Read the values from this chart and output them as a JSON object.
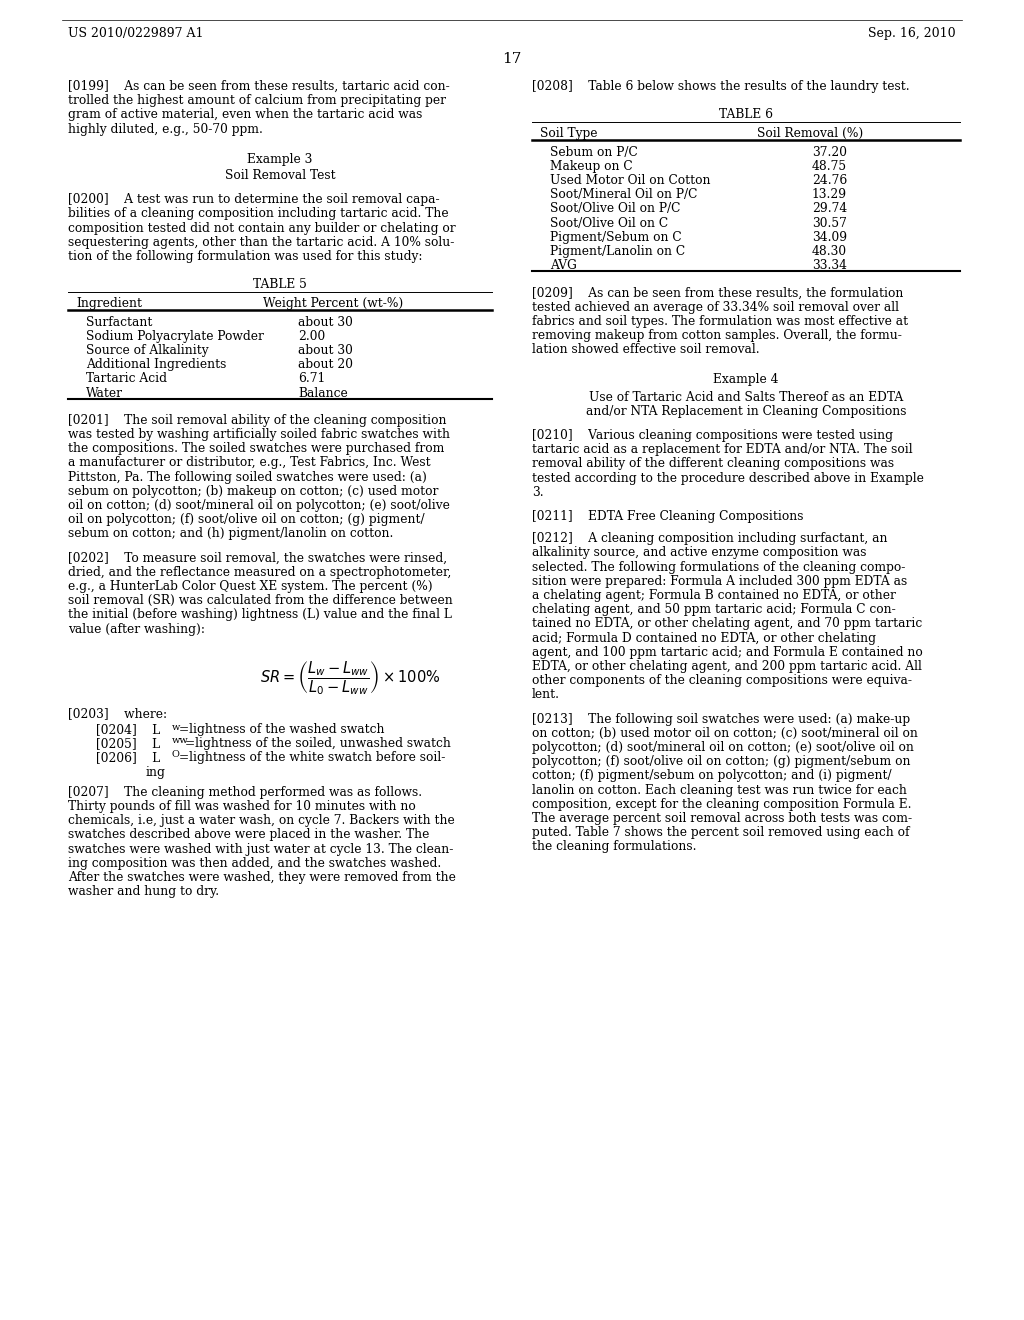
{
  "page_header_left": "US 2010/0229897 A1",
  "page_header_right": "Sep. 16, 2010",
  "page_number": "17",
  "background_color": "#ffffff",
  "text_color": "#000000",
  "left_col": {
    "para199_lines": [
      "[0199]    As can be seen from these results, tartaric acid con-",
      "trolled the highest amount of calcium from precipitating per",
      "gram of active material, even when the tartaric acid was",
      "highly diluted, e.g., 50-70 ppm."
    ],
    "example3_title": "Example 3",
    "example3_sub": "Soil Removal Test",
    "para200_lines": [
      "[0200]    A test was run to determine the soil removal capa-",
      "bilities of a cleaning composition including tartaric acid. The",
      "composition tested did not contain any builder or chelating or",
      "sequestering agents, other than the tartaric acid. A 10% solu-",
      "tion of the following formulation was used for this study:"
    ],
    "table5_title": "TABLE 5",
    "table5_col1": "Ingredient",
    "table5_col2": "Weight Percent (wt-%)",
    "table5_rows": [
      [
        "Surfactant",
        "about 30"
      ],
      [
        "Sodium Polyacrylate Powder",
        "2.00"
      ],
      [
        "Source of Alkalinity",
        "about 30"
      ],
      [
        "Additional Ingredients",
        "about 20"
      ],
      [
        "Tartaric Acid",
        "6.71"
      ],
      [
        "Water",
        "Balance"
      ]
    ],
    "para201_lines": [
      "[0201]    The soil removal ability of the cleaning composition",
      "was tested by washing artificially soiled fabric swatches with",
      "the compositions. The soiled swatches were purchased from",
      "a manufacturer or distributor, e.g., Test Fabrics, Inc. West",
      "Pittston, Pa. The following soiled swatches were used: (a)",
      "sebum on polycotton; (b) makeup on cotton; (c) used motor",
      "oil on cotton; (d) soot/mineral oil on polycotton; (e) soot/olive",
      "oil on polycotton; (f) soot/olive oil on cotton; (g) pigment/",
      "sebum on cotton; and (h) pigment/lanolin on cotton."
    ],
    "para202_lines": [
      "[0202]    To measure soil removal, the swatches were rinsed,",
      "dried, and the reflectance measured on a spectrophotometer,",
      "e.g., a HunterLab Color Quest XE system. The percent (%)",
      "soil removal (SR) was calculated from the difference between",
      "the initial (before washing) lightness (L) value and the final L",
      "value (after washing):"
    ],
    "para203": "[0203]    where:",
    "para204": "[0204]    Lₑ=lightness of the washed swatch",
    "para204_sub": "w",
    "para205": "[0205]    Lₑₑ=lightness of the soiled, unwashed swatch",
    "para206_lines": [
      "[0206]    Lₒ=lightness of the white swatch before soil-",
      "              ing"
    ],
    "para207_lines": [
      "[0207]    The cleaning method performed was as follows.",
      "Thirty pounds of fill was washed for 10 minutes with no",
      "chemicals, i.e, just a water wash, on cycle 7. Backers with the",
      "swatches described above were placed in the washer. The",
      "swatches were washed with just water at cycle 13. The clean-",
      "ing composition was then added, and the swatches washed.",
      "After the swatches were washed, they were removed from the",
      "washer and hung to dry."
    ]
  },
  "right_col": {
    "para208_lines": [
      "[0208]    Table 6 below shows the results of the laundry test."
    ],
    "table6_title": "TABLE 6",
    "table6_col1": "Soil Type",
    "table6_col2": "Soil Removal (%)",
    "table6_rows": [
      [
        "Sebum on P/C",
        "37.20"
      ],
      [
        "Makeup on C",
        "48.75"
      ],
      [
        "Used Motor Oil on Cotton",
        "24.76"
      ],
      [
        "Soot/Mineral Oil on P/C",
        "13.29"
      ],
      [
        "Soot/Olive Oil on P/C",
        "29.74"
      ],
      [
        "Soot/Olive Oil on C",
        "30.57"
      ],
      [
        "Pigment/Sebum on C",
        "34.09"
      ],
      [
        "Pigment/Lanolin on C",
        "48.30"
      ],
      [
        "AVG",
        "33.34"
      ]
    ],
    "para209_lines": [
      "[0209]    As can be seen from these results, the formulation",
      "tested achieved an average of 33.34% soil removal over all",
      "fabrics and soil types. The formulation was most effective at",
      "removing makeup from cotton samples. Overall, the formu-",
      "lation showed effective soil removal."
    ],
    "example4_title": "Example 4",
    "example4_sub_lines": [
      "Use of Tartaric Acid and Salts Thereof as an EDTA",
      "and/or NTA Replacement in Cleaning Compositions"
    ],
    "para210_lines": [
      "[0210]    Various cleaning compositions were tested using",
      "tartaric acid as a replacement for EDTA and/or NTA. The soil",
      "removal ability of the different cleaning compositions was",
      "tested according to the procedure described above in Example",
      "3."
    ],
    "para211_lines": [
      "[0211]    EDTA Free Cleaning Compositions"
    ],
    "para212_lines": [
      "[0212]    A cleaning composition including surfactant, an",
      "alkalinity source, and active enzyme composition was",
      "selected. The following formulations of the cleaning compo-",
      "sition were prepared: Formula A included 300 ppm EDTA as",
      "a chelating agent; Formula B contained no EDTA, or other",
      "chelating agent, and 50 ppm tartaric acid; Formula C con-",
      "tained no EDTA, or other chelating agent, and 70 ppm tartaric",
      "acid; Formula D contained no EDTA, or other chelating",
      "agent, and 100 ppm tartaric acid; and Formula E contained no",
      "EDTA, or other chelating agent, and 200 ppm tartaric acid. All",
      "other components of the cleaning compositions were equiva-",
      "lent."
    ],
    "para213_lines": [
      "[0213]    The following soil swatches were used: (a) make-up",
      "on cotton; (b) used motor oil on cotton; (c) soot/mineral oil on",
      "polycotton; (d) soot/mineral oil on cotton; (e) soot/olive oil on",
      "polycotton; (f) soot/olive oil on cotton; (g) pigment/sebum on",
      "cotton; (f) pigment/sebum on polycotton; and (i) pigment/",
      "lanolin on cotton. Each cleaning test was run twice for each",
      "composition, except for the cleaning composition Formula E.",
      "The average percent soil removal across both tests was com-",
      "puted. Table 7 shows the percent soil removed using each of",
      "the cleaning formulations."
    ]
  }
}
